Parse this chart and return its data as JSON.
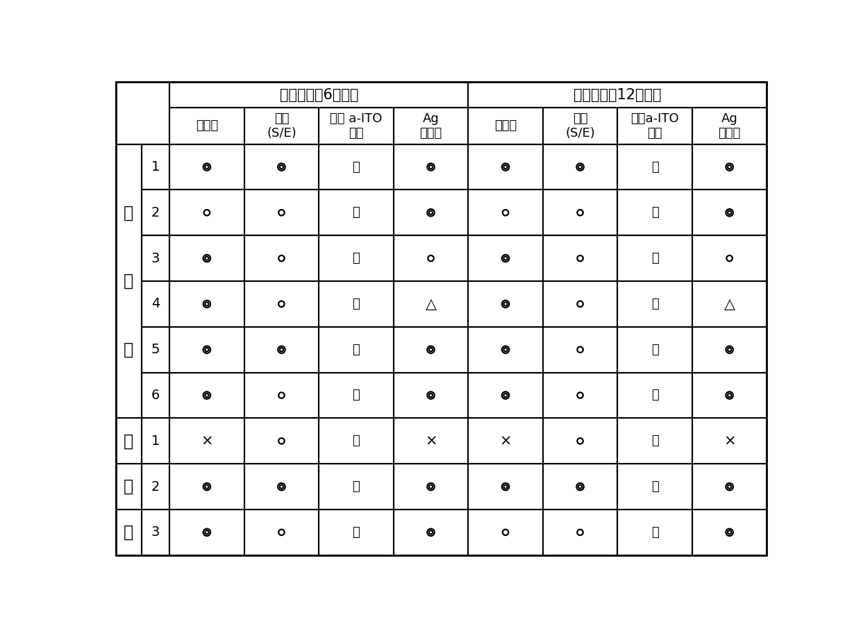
{
  "title_left": "经时变化（6小时）",
  "title_right": "经时变化（12小时）",
  "col_headers_left": [
    "平直度",
    "侧蚀\n(S/E)",
    "上部 a-ITO\n尖端",
    "Ag\n再吸附"
  ],
  "col_headers_right": [
    "平直度",
    "侧蚀\n(S/E)",
    "上部a-ITO\n尖端",
    "Ag\n再吸附"
  ],
  "row_group1_chars": [
    "实",
    "施",
    "例"
  ],
  "row_group2_chars": [
    "比",
    "较",
    "例"
  ],
  "row_labels_group1": [
    "1",
    "2",
    "3",
    "4",
    "5",
    "6"
  ],
  "row_labels_group2": [
    "1",
    "2",
    "3"
  ],
  "data_6h": [
    [
      "◎",
      "◎",
      "无",
      "◎"
    ],
    [
      "o",
      "o",
      "无",
      "◎"
    ],
    [
      "◎",
      "o",
      "无",
      "o"
    ],
    [
      "◎",
      "o",
      "无",
      "△"
    ],
    [
      "◎",
      "◎",
      "无",
      "◎"
    ],
    [
      "◎",
      "o",
      "无",
      "◎"
    ],
    [
      "×",
      "o",
      "无",
      "×"
    ],
    [
      "◎",
      "◎",
      "有",
      "◎"
    ],
    [
      "◎",
      "o",
      "无",
      "◎"
    ]
  ],
  "data_12h": [
    [
      "◎",
      "◎",
      "无",
      "◎"
    ],
    [
      "o",
      "o",
      "无",
      "◎"
    ],
    [
      "◎",
      "o",
      "无",
      "o"
    ],
    [
      "◎",
      "o",
      "无",
      "△"
    ],
    [
      "◎",
      "o",
      "无",
      "◎"
    ],
    [
      "◎",
      "o",
      "无",
      "◎"
    ],
    [
      "×",
      "o",
      "无",
      "×"
    ],
    [
      "◎",
      "◎",
      "有",
      "◎"
    ],
    [
      "o",
      "o",
      "有",
      "◎"
    ]
  ],
  "background_color": "#ffffff",
  "line_color": "#000000",
  "text_color": "#000000",
  "font_size_header": 13,
  "font_size_cell": 14,
  "font_size_group": 17,
  "font_size_title": 15,
  "font_size_rowlabel": 14
}
